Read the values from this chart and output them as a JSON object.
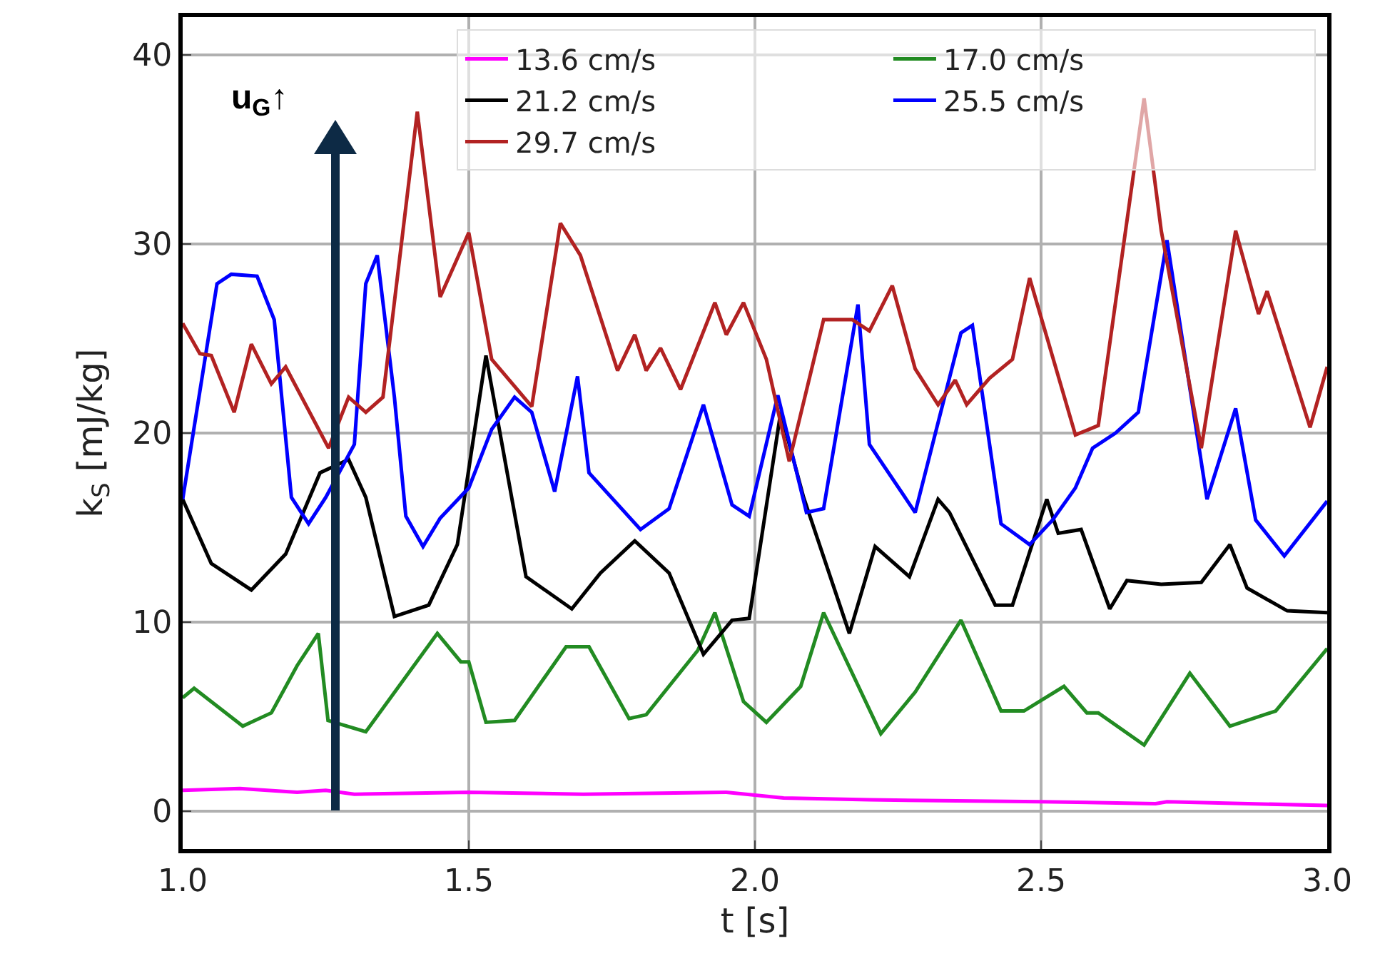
{
  "chart_data": {
    "type": "line",
    "xlabel": "t [s]",
    "ylabel": "k$_{S}$ [mJ/kg]",
    "annotations": [
      "u$_{G}$↑"
    ],
    "xlim": [
      1.0,
      3.0
    ],
    "xticks": [
      {
        "value": 1.0,
        "label": "1.0"
      },
      {
        "value": 1.5,
        "label": "1.5"
      },
      {
        "value": 2.0,
        "label": "2.0"
      },
      {
        "value": 2.5,
        "label": "2.5"
      },
      {
        "value": 3.0,
        "label": "3.0"
      }
    ],
    "ylim": [
      -2,
      42
    ],
    "yticks": [
      0,
      10,
      20,
      30,
      40
    ],
    "grid": true,
    "legend": "top right",
    "marker": "none",
    "line_style": "solid",
    "series": [
      {
        "name": "13.6 cm/s",
        "color": "#ff00ff",
        "x": [
          1.0,
          1.1,
          1.2,
          1.25,
          1.3,
          1.5,
          1.7,
          1.95,
          2.05,
          2.2,
          2.5,
          2.7,
          2.72,
          3.0
        ],
        "values": [
          1.1,
          1.2,
          1.0,
          1.1,
          0.9,
          1.0,
          0.9,
          1.0,
          0.7,
          0.6,
          0.5,
          0.4,
          0.5,
          0.3
        ]
      },
      {
        "name": "17.0 cm/s",
        "color": "#228b22",
        "x": [
          1.0,
          1.02,
          1.105,
          1.155,
          1.2,
          1.237,
          1.254,
          1.32,
          1.445,
          1.486,
          1.5,
          1.53,
          1.58,
          1.67,
          1.71,
          1.78,
          1.81,
          1.9,
          1.93,
          1.98,
          2.02,
          2.08,
          2.12,
          2.22,
          2.28,
          2.36,
          2.43,
          2.47,
          2.54,
          2.58,
          2.6,
          2.68,
          2.76,
          2.83,
          2.91,
          3.0
        ],
        "values": [
          6.0,
          6.5,
          4.5,
          5.2,
          7.7,
          9.4,
          4.8,
          4.2,
          9.4,
          7.9,
          7.9,
          4.7,
          4.8,
          8.7,
          8.7,
          4.9,
          5.1,
          8.5,
          10.5,
          5.8,
          4.7,
          6.6,
          10.5,
          4.1,
          6.3,
          10.1,
          5.3,
          5.3,
          6.6,
          5.2,
          5.2,
          3.5,
          7.3,
          4.5,
          5.3,
          8.6
        ]
      },
      {
        "name": "21.2 cm/s",
        "color": "#000000",
        "x": [
          1.0,
          1.05,
          1.12,
          1.18,
          1.24,
          1.29,
          1.32,
          1.37,
          1.43,
          1.48,
          1.53,
          1.6,
          1.68,
          1.73,
          1.79,
          1.85,
          1.91,
          1.96,
          1.99,
          2.045,
          2.085,
          2.165,
          2.21,
          2.27,
          2.32,
          2.34,
          2.42,
          2.45,
          2.51,
          2.53,
          2.57,
          2.62,
          2.65,
          2.71,
          2.78,
          2.83,
          2.86,
          2.93,
          3.0
        ],
        "values": [
          16.5,
          13.1,
          11.7,
          13.6,
          17.9,
          18.6,
          16.6,
          10.3,
          10.9,
          14.1,
          24.1,
          12.4,
          10.7,
          12.6,
          14.3,
          12.6,
          8.3,
          10.1,
          10.2,
          21.1,
          16.6,
          9.4,
          14.0,
          12.4,
          16.5,
          15.8,
          10.9,
          10.9,
          16.5,
          14.7,
          14.9,
          10.7,
          12.2,
          12.0,
          12.1,
          14.1,
          11.8,
          10.6,
          10.5
        ]
      },
      {
        "name": "25.5 cm/s",
        "color": "#0000ff",
        "x": [
          1.0,
          1.06,
          1.085,
          1.13,
          1.16,
          1.19,
          1.22,
          1.25,
          1.3,
          1.32,
          1.34,
          1.37,
          1.39,
          1.42,
          1.45,
          1.5,
          1.54,
          1.58,
          1.61,
          1.65,
          1.69,
          1.71,
          1.8,
          1.85,
          1.91,
          1.96,
          1.99,
          2.04,
          2.09,
          2.12,
          2.18,
          2.2,
          2.28,
          2.36,
          2.38,
          2.43,
          2.48,
          2.52,
          2.56,
          2.59,
          2.63,
          2.67,
          2.72,
          2.79,
          2.84,
          2.875,
          2.925,
          3.0
        ],
        "values": [
          16.5,
          27.9,
          28.4,
          28.3,
          26.0,
          16.6,
          15.2,
          16.6,
          19.4,
          27.9,
          29.4,
          21.9,
          15.6,
          14.0,
          15.5,
          17.1,
          20.2,
          21.9,
          21.1,
          16.9,
          23.0,
          17.9,
          14.9,
          16.0,
          21.5,
          16.2,
          15.6,
          22.0,
          15.8,
          16.0,
          26.8,
          19.4,
          15.8,
          25.3,
          25.7,
          15.2,
          14.1,
          15.4,
          17.1,
          19.2,
          20.0,
          21.1,
          30.2,
          16.5,
          21.3,
          15.4,
          13.5,
          16.4
        ]
      },
      {
        "name": "29.7 cm/s",
        "color": "#b22222",
        "x": [
          1.0,
          1.03,
          1.05,
          1.09,
          1.12,
          1.155,
          1.18,
          1.255,
          1.29,
          1.32,
          1.35,
          1.41,
          1.45,
          1.5,
          1.54,
          1.61,
          1.66,
          1.695,
          1.76,
          1.79,
          1.81,
          1.835,
          1.87,
          1.93,
          1.95,
          1.98,
          2.02,
          2.06,
          2.12,
          2.17,
          2.2,
          2.24,
          2.28,
          2.32,
          2.35,
          2.37,
          2.41,
          2.45,
          2.48,
          2.56,
          2.6,
          2.68,
          2.71,
          2.78,
          2.84,
          2.88,
          2.895,
          2.97,
          3.0
        ],
        "values": [
          25.8,
          24.2,
          24.1,
          21.1,
          24.7,
          22.6,
          23.5,
          19.2,
          21.9,
          21.1,
          21.9,
          37.0,
          27.2,
          30.6,
          23.9,
          21.4,
          31.1,
          29.4,
          23.3,
          25.2,
          23.3,
          24.5,
          22.3,
          26.9,
          25.2,
          26.9,
          23.9,
          18.5,
          26.0,
          26.0,
          25.4,
          27.8,
          23.4,
          21.5,
          22.8,
          21.5,
          22.9,
          23.9,
          28.2,
          19.9,
          20.4,
          37.7,
          30.7,
          19.2,
          30.7,
          26.3,
          27.5,
          20.3,
          23.5
        ]
      }
    ]
  }
}
